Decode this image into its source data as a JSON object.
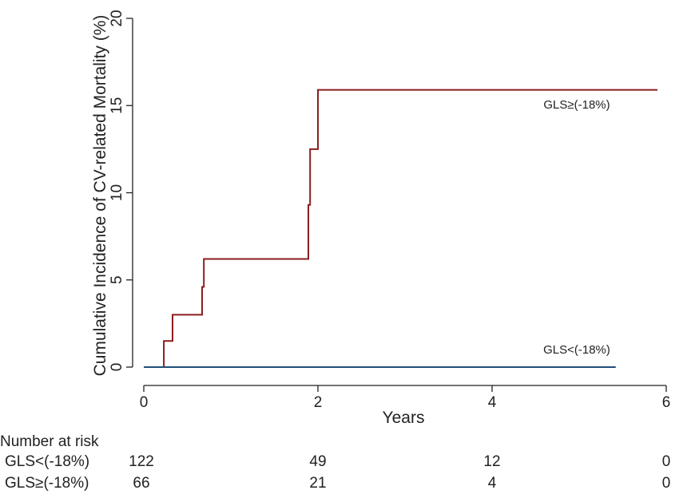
{
  "chart_data": {
    "type": "line",
    "step": true,
    "title": "",
    "xlabel": "Years",
    "ylabel": "Cumulative Incidence of CV-related Mortality (%)",
    "xlim": [
      0,
      6
    ],
    "ylim": [
      0,
      20
    ],
    "xticks": [
      0,
      2,
      4,
      6
    ],
    "yticks": [
      0,
      5,
      10,
      15,
      20
    ],
    "grid": false,
    "series": [
      {
        "name": "GLS≥(-18%)",
        "color": "#8b1e1e",
        "x": [
          0,
          0.23,
          0.23,
          0.33,
          0.33,
          0.67,
          0.67,
          0.69,
          0.69,
          1.89,
          1.89,
          1.91,
          1.91,
          2.0,
          2.0,
          5.9
        ],
        "y": [
          0,
          0,
          1.5,
          1.5,
          3.0,
          3.0,
          4.6,
          4.6,
          6.2,
          6.2,
          9.3,
          9.3,
          12.5,
          12.5,
          15.9,
          15.9
        ]
      },
      {
        "name": "GLS<(-18%)",
        "color": "#1f4e79",
        "x": [
          0,
          5.42
        ],
        "y": [
          0,
          0
        ]
      }
    ],
    "risk_table": {
      "title": "Number at risk",
      "times": [
        0,
        2,
        4,
        6
      ],
      "rows": [
        {
          "label": "GLS<(-18%)",
          "counts": [
            "122",
            "49",
            "12",
            "0"
          ]
        },
        {
          "label": "GLS≥(-18%)",
          "counts": [
            "66",
            "21",
            "4",
            "0"
          ]
        }
      ]
    }
  }
}
